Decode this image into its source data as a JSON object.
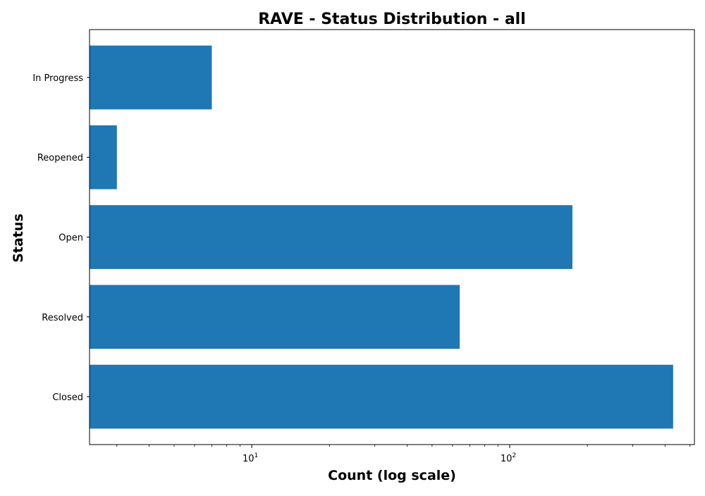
{
  "chart_data": {
    "type": "bar",
    "orientation": "horizontal",
    "title": "RAVE - Status Distribution - all",
    "xlabel": "Count (log scale)",
    "ylabel": "Status",
    "x_scale": "log",
    "xlim": [
      2.35,
      520
    ],
    "categories": [
      "In Progress",
      "Reopened",
      "Open",
      "Resolved",
      "Closed"
    ],
    "values": [
      7,
      3,
      175,
      64,
      430
    ],
    "x_major_ticks": [
      {
        "value": 10,
        "base": "10",
        "exp": "1"
      },
      {
        "value": 100,
        "base": "10",
        "exp": "2"
      }
    ],
    "grid": false,
    "legend": false,
    "bar_color": "#1f77b4"
  }
}
